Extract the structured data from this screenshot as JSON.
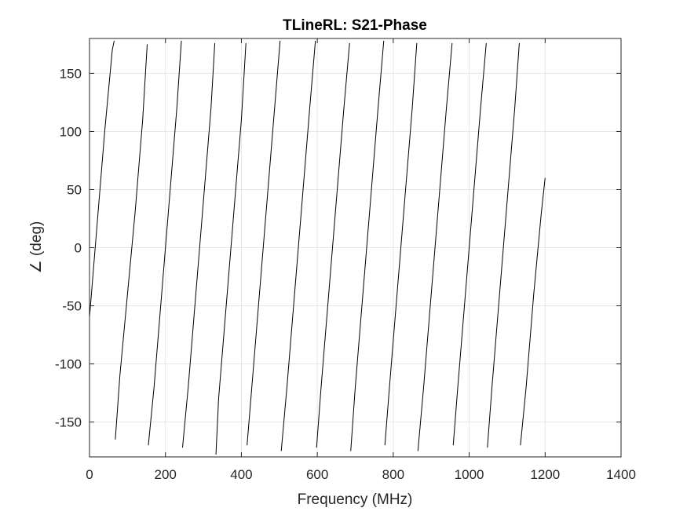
{
  "chart_data": {
    "type": "line",
    "title": "TLineRL: S21-Phase",
    "xlabel": "Frequency (MHz)",
    "ylabel": "∠ (deg)",
    "xlim": [
      0,
      1400
    ],
    "ylim": [
      -180,
      180
    ],
    "xticks": [
      0,
      200,
      400,
      600,
      800,
      1000,
      1200,
      1400
    ],
    "yticks": [
      -150,
      -100,
      -50,
      0,
      50,
      100,
      150
    ],
    "xtick_labels": [
      "0",
      "200",
      "400",
      "600",
      "800",
      "1000",
      "1200",
      "1400"
    ],
    "ytick_labels": [
      "-150",
      "-100",
      "-50",
      "0",
      "50",
      "100",
      "150"
    ],
    "grid": true,
    "legend": "none",
    "line_color": "#000000",
    "series": [
      {
        "x": [
          0,
          20,
          40,
          60,
          65,
          68,
          80,
          100,
          120,
          140,
          152,
          155,
          170,
          190,
          210,
          230,
          242,
          245,
          260,
          280,
          300,
          320,
          330,
          333,
          340,
          360,
          380,
          400,
          412,
          415,
          430,
          450,
          470,
          490,
          502,
          505,
          520,
          540,
          560,
          580,
          595,
          598,
          610,
          630,
          650,
          670,
          685,
          688,
          700,
          720,
          740,
          760,
          775,
          778,
          790,
          810,
          830,
          850,
          862,
          865,
          880,
          900,
          920,
          940,
          955,
          958,
          970,
          990,
          1010,
          1030,
          1045,
          1048,
          1060,
          1080,
          1100,
          1120,
          1132,
          1135,
          1150,
          1170,
          1190,
          1200
        ],
        "y": [
          -60,
          20,
          100,
          170,
          178,
          -165,
          -110,
          -40,
          30,
          110,
          175,
          -170,
          -120,
          -40,
          40,
          120,
          178,
          -172,
          -120,
          -40,
          40,
          120,
          176,
          -178,
          -130,
          -50,
          30,
          110,
          176,
          -170,
          -110,
          -30,
          50,
          130,
          178,
          -175,
          -120,
          -40,
          40,
          120,
          178,
          -172,
          -120,
          -40,
          40,
          120,
          176,
          -175,
          -120,
          -40,
          40,
          120,
          178,
          -170,
          -120,
          -40,
          40,
          120,
          176,
          -175,
          -120,
          -40,
          40,
          120,
          176,
          -170,
          -120,
          -40,
          40,
          120,
          176,
          -172,
          -120,
          -40,
          40,
          120,
          176,
          -170,
          -120,
          -40,
          30,
          60
        ]
      }
    ]
  }
}
